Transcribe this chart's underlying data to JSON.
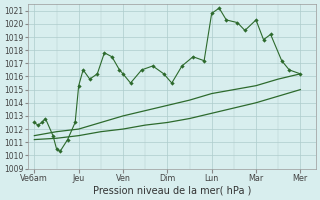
{
  "title": "",
  "xlabel": "Pression niveau de la mer( hPa )",
  "ylabel": "",
  "bg_color": "#d8eeee",
  "grid_color": "#aecccc",
  "line_color": "#2d6a2d",
  "ylim": [
    1009,
    1021.5
  ],
  "yticks": [
    1009,
    1010,
    1011,
    1012,
    1013,
    1014,
    1015,
    1016,
    1017,
    1018,
    1019,
    1020,
    1021
  ],
  "xtick_labels": [
    "Ve6am",
    "Jeu",
    "Ven",
    "Dim",
    "Lun",
    "Mar",
    "Mer"
  ],
  "xtick_positions": [
    0,
    1,
    2,
    3,
    4,
    5,
    6
  ],
  "series1_x": [
    0.0,
    0.08,
    0.17,
    0.25,
    0.42,
    0.5,
    0.58,
    0.75,
    0.92,
    1.0,
    1.1,
    1.25,
    1.42,
    1.58,
    1.75,
    1.92,
    2.0,
    2.17,
    2.42,
    2.67,
    2.92,
    3.1,
    3.33,
    3.58,
    3.83,
    4.0,
    4.17,
    4.33,
    4.58,
    4.75,
    5.0,
    5.17,
    5.33,
    5.58,
    5.75,
    6.0
  ],
  "series1_y": [
    1012.5,
    1012.3,
    1012.5,
    1012.8,
    1011.5,
    1010.5,
    1010.3,
    1011.2,
    1012.5,
    1015.3,
    1016.5,
    1015.8,
    1016.2,
    1017.8,
    1017.5,
    1016.5,
    1016.2,
    1015.5,
    1016.5,
    1016.8,
    1016.2,
    1015.5,
    1016.8,
    1017.5,
    1017.2,
    1020.8,
    1021.2,
    1020.3,
    1020.1,
    1019.5,
    1020.3,
    1018.8,
    1019.2,
    1017.2,
    1016.5,
    1016.2
  ],
  "series2_x": [
    0.0,
    0.5,
    1.0,
    1.5,
    2.0,
    2.5,
    3.0,
    3.5,
    4.0,
    4.5,
    5.0,
    5.5,
    6.0
  ],
  "series2_y": [
    1011.5,
    1011.8,
    1012.0,
    1012.5,
    1013.0,
    1013.4,
    1013.8,
    1014.2,
    1014.7,
    1015.0,
    1015.3,
    1015.8,
    1016.2
  ],
  "series3_x": [
    0.0,
    0.5,
    1.0,
    1.5,
    2.0,
    2.5,
    3.0,
    3.5,
    4.0,
    4.5,
    5.0,
    5.5,
    6.0
  ],
  "series3_y": [
    1011.2,
    1011.3,
    1011.5,
    1011.8,
    1012.0,
    1012.3,
    1012.5,
    1012.8,
    1013.2,
    1013.6,
    1014.0,
    1014.5,
    1015.0
  ]
}
